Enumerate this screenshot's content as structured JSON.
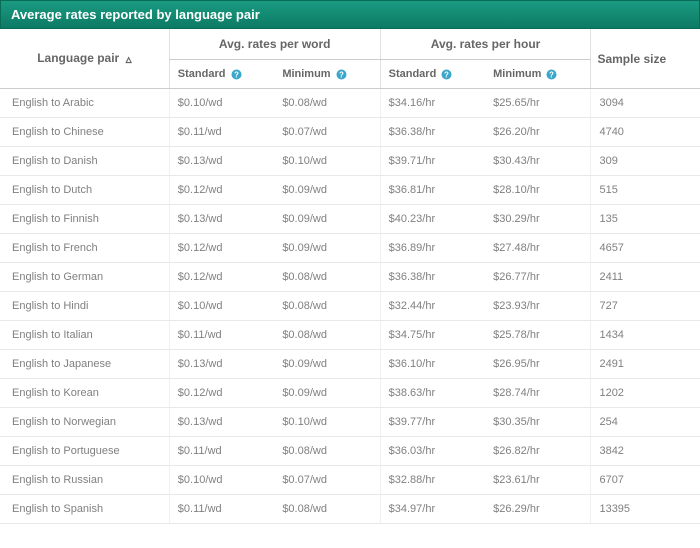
{
  "title": "Average rates reported by language pair",
  "colors": {
    "header_bg": "#148f77",
    "header_text": "#ffffff",
    "border": "#cccccc",
    "row_border": "#e8e8e8",
    "text_header": "#666666",
    "text_cell": "#808080",
    "help_icon": "#3aa6c9"
  },
  "columns": {
    "language_pair": "Language pair",
    "group_word": "Avg. rates per word",
    "group_hour": "Avg. rates per hour",
    "standard": "Standard",
    "minimum": "Minimum",
    "sample": "Sample size"
  },
  "sort_indicator": "▵",
  "rows": [
    {
      "pair": "English to Arabic",
      "word_std": "$0.10/wd",
      "word_min": "$0.08/wd",
      "hour_std": "$34.16/hr",
      "hour_min": "$25.65/hr",
      "sample": "3094"
    },
    {
      "pair": "English to Chinese",
      "word_std": "$0.11/wd",
      "word_min": "$0.07/wd",
      "hour_std": "$36.38/hr",
      "hour_min": "$26.20/hr",
      "sample": "4740"
    },
    {
      "pair": "English to Danish",
      "word_std": "$0.13/wd",
      "word_min": "$0.10/wd",
      "hour_std": "$39.71/hr",
      "hour_min": "$30.43/hr",
      "sample": "309"
    },
    {
      "pair": "English to Dutch",
      "word_std": "$0.12/wd",
      "word_min": "$0.09/wd",
      "hour_std": "$36.81/hr",
      "hour_min": "$28.10/hr",
      "sample": "515"
    },
    {
      "pair": "English to Finnish",
      "word_std": "$0.13/wd",
      "word_min": "$0.09/wd",
      "hour_std": "$40.23/hr",
      "hour_min": "$30.29/hr",
      "sample": "135"
    },
    {
      "pair": "English to French",
      "word_std": "$0.12/wd",
      "word_min": "$0.09/wd",
      "hour_std": "$36.89/hr",
      "hour_min": "$27.48/hr",
      "sample": "4657"
    },
    {
      "pair": "English to German",
      "word_std": "$0.12/wd",
      "word_min": "$0.08/wd",
      "hour_std": "$36.38/hr",
      "hour_min": "$26.77/hr",
      "sample": "2411"
    },
    {
      "pair": "English to Hindi",
      "word_std": "$0.10/wd",
      "word_min": "$0.08/wd",
      "hour_std": "$32.44/hr",
      "hour_min": "$23.93/hr",
      "sample": "727"
    },
    {
      "pair": "English to Italian",
      "word_std": "$0.11/wd",
      "word_min": "$0.08/wd",
      "hour_std": "$34.75/hr",
      "hour_min": "$25.78/hr",
      "sample": "1434"
    },
    {
      "pair": "English to Japanese",
      "word_std": "$0.13/wd",
      "word_min": "$0.09/wd",
      "hour_std": "$36.10/hr",
      "hour_min": "$26.95/hr",
      "sample": "2491"
    },
    {
      "pair": "English to Korean",
      "word_std": "$0.12/wd",
      "word_min": "$0.09/wd",
      "hour_std": "$38.63/hr",
      "hour_min": "$28.74/hr",
      "sample": "1202"
    },
    {
      "pair": "English to Norwegian",
      "word_std": "$0.13/wd",
      "word_min": "$0.10/wd",
      "hour_std": "$39.77/hr",
      "hour_min": "$30.35/hr",
      "sample": "254"
    },
    {
      "pair": "English to Portuguese",
      "word_std": "$0.11/wd",
      "word_min": "$0.08/wd",
      "hour_std": "$36.03/hr",
      "hour_min": "$26.82/hr",
      "sample": "3842"
    },
    {
      "pair": "English to Russian",
      "word_std": "$0.10/wd",
      "word_min": "$0.07/wd",
      "hour_std": "$32.88/hr",
      "hour_min": "$23.61/hr",
      "sample": "6707"
    },
    {
      "pair": "English to Spanish",
      "word_std": "$0.11/wd",
      "word_min": "$0.08/wd",
      "hour_std": "$34.97/hr",
      "hour_min": "$26.29/hr",
      "sample": "13395"
    }
  ]
}
